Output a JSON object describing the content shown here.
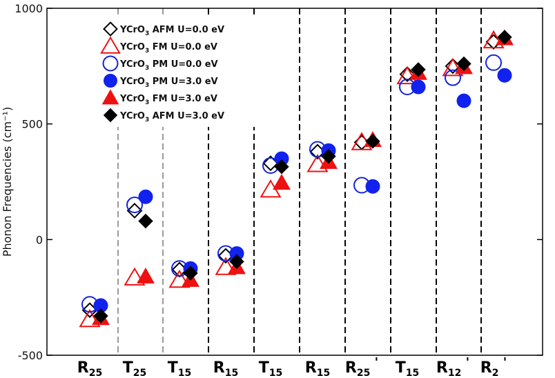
{
  "chart_data": {
    "type": "scatter",
    "ylabel": "Phonon Frequencies (cm⁻¹)",
    "ylim": [
      -500,
      1000
    ],
    "yticks": [
      -500,
      0,
      500,
      1000
    ],
    "categories": [
      {
        "base": "R",
        "sub": "25",
        "prime": ""
      },
      {
        "base": "T",
        "sub": "25",
        "prime": ""
      },
      {
        "base": "T",
        "sub": "15",
        "prime": ""
      },
      {
        "base": "R",
        "sub": "15",
        "prime": ""
      },
      {
        "base": "T",
        "sub": "15",
        "prime": ""
      },
      {
        "base": "R",
        "sub": "15",
        "prime": ""
      },
      {
        "base": "R",
        "sub": "25",
        "prime": "'"
      },
      {
        "base": "T",
        "sub": "15",
        "prime": ""
      },
      {
        "base": "R",
        "sub": "12",
        "prime": "'"
      },
      {
        "base": "R",
        "sub": "2",
        "prime": "'"
      }
    ],
    "separators": [
      {
        "after": 0,
        "style": "gray"
      },
      {
        "after": 1,
        "style": "gray"
      },
      {
        "after": 2,
        "style": "black"
      },
      {
        "after": 3,
        "style": "black"
      },
      {
        "after": 4,
        "style": "black"
      },
      {
        "after": 5,
        "style": "black"
      },
      {
        "after": 6,
        "style": "black"
      },
      {
        "after": 7,
        "style": "black"
      },
      {
        "after": 8,
        "style": "black"
      }
    ],
    "series": [
      {
        "name": "YCrO",
        "sub": "3",
        "suffix": "AFM U=0.0 eV",
        "marker": "diamond-open",
        "color": "#000000",
        "values": [
          -305,
          125,
          -130,
          -70,
          330,
          380,
          420,
          715,
          750,
          855
        ]
      },
      {
        "name": "YCrO",
        "sub": "3",
        "suffix": "FM U=0.0 eV",
        "marker": "triangle-open",
        "color": "#ee1111",
        "values": [
          -345,
          -165,
          -175,
          -120,
          215,
          325,
          420,
          705,
          740,
          860
        ]
      },
      {
        "name": "YCrO",
        "sub": "3",
        "suffix": "PM U=0.0 eV",
        "marker": "circle-open",
        "color": "#1122dd",
        "values": [
          -280,
          150,
          -125,
          -60,
          320,
          390,
          235,
          660,
          700,
          765
        ]
      },
      {
        "name": "YCrO",
        "sub": "3",
        "suffix": "PM U=3.0 eV",
        "marker": "circle-filled",
        "color": "#1122ee",
        "values": [
          -285,
          185,
          -125,
          -60,
          350,
          385,
          230,
          660,
          600,
          710
        ]
      },
      {
        "name": "YCrO",
        "sub": "3",
        "suffix": "FM U=3.0 eV",
        "marker": "triangle-filled",
        "color": "#ee1111",
        "values": [
          -340,
          -160,
          -175,
          -120,
          245,
          335,
          430,
          720,
          745,
          870
        ]
      },
      {
        "name": "YCrO",
        "sub": "3",
        "suffix": "AFM U=3.0 eV",
        "marker": "diamond-filled",
        "color": "#000000",
        "values": [
          -330,
          80,
          -145,
          -95,
          315,
          360,
          425,
          735,
          760,
          875
        ]
      }
    ],
    "legend_position": "top-left",
    "grid": false
  }
}
